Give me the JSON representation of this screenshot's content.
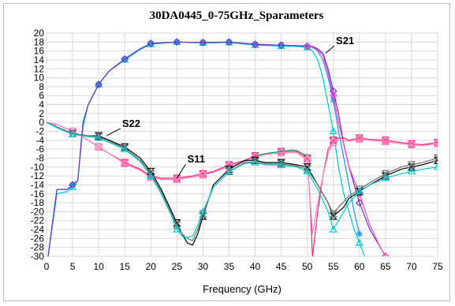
{
  "chart_data": {
    "type": "line",
    "title": "30DA0445_0-75GHz_Sparameters",
    "xlabel": "Frequency (GHz)",
    "ylabel": "",
    "xlim": [
      0,
      75
    ],
    "ylim": [
      -30,
      20
    ],
    "xticks": [
      0,
      5,
      10,
      15,
      20,
      25,
      30,
      35,
      40,
      45,
      50,
      55,
      60,
      65,
      70,
      75
    ],
    "yticks": [
      20,
      18,
      16,
      14,
      12,
      10,
      8,
      6,
      4,
      2,
      0,
      -2,
      -4,
      -6,
      -8,
      -10,
      -12,
      -14,
      -16,
      -18,
      -20,
      -22,
      -24,
      -26,
      -28,
      -30
    ],
    "grid": true,
    "legend": "none",
    "annotations": [
      {
        "text": "S21",
        "x": 55.5,
        "y": 17.5,
        "arrow_to": [
          53.5,
          15.5
        ]
      },
      {
        "text": "S22",
        "x": 14.5,
        "y": -1.0,
        "arrow_to": [
          11.5,
          -3.0
        ]
      },
      {
        "text": "S11",
        "x": 27.0,
        "y": -9.0,
        "arrow_to": [
          25.0,
          -12.5
        ]
      }
    ],
    "series": [
      {
        "key": "s21_a",
        "color": "#1f8fff",
        "marker": "star",
        "x": [
          0.3,
          2,
          4,
          5,
          6,
          7,
          8,
          10,
          12,
          15,
          18,
          20,
          25,
          30,
          35,
          40,
          45,
          48,
          50,
          51,
          52,
          53,
          54,
          55,
          56,
          57,
          58,
          59,
          60
        ],
        "y": [
          -30,
          -15,
          -15,
          -14,
          -13,
          0,
          4,
          8.5,
          11.5,
          14.2,
          16.5,
          17.7,
          18,
          17.9,
          18,
          17.5,
          17.3,
          17.2,
          17,
          16.8,
          16,
          14,
          10,
          5,
          -2,
          -8,
          -14,
          -20,
          -25
        ]
      },
      {
        "key": "s21_b",
        "color": "#00c8d0",
        "marker": "triangle",
        "x": [
          0.3,
          2,
          4,
          5,
          6,
          7,
          8,
          10,
          12,
          15,
          18,
          20,
          25,
          30,
          35,
          40,
          45,
          48,
          50,
          51,
          52,
          53,
          54,
          55,
          56,
          57,
          58,
          59,
          60,
          61
        ],
        "y": [
          -30,
          -16,
          -15.5,
          -14.5,
          -13,
          -1,
          4,
          8.5,
          11.5,
          14,
          16.3,
          17.5,
          18,
          17.8,
          17.9,
          17.3,
          17.1,
          17,
          16.8,
          16,
          14,
          10,
          4,
          -2,
          -10,
          -16,
          -20,
          -24,
          -27,
          -30
        ]
      },
      {
        "key": "s21_c",
        "color": "#7030c0",
        "marker": "diamond",
        "x": [
          0.3,
          2,
          4,
          5,
          6,
          7,
          8,
          10,
          12,
          15,
          18,
          20,
          25,
          30,
          35,
          40,
          45,
          48,
          50,
          51,
          52,
          53,
          54,
          55,
          56,
          57,
          58,
          60,
          62,
          64,
          65
        ],
        "y": [
          -30,
          -15,
          -15,
          -14,
          -13,
          0,
          4,
          8.5,
          11.5,
          14.2,
          16.5,
          17.7,
          18,
          17.9,
          18,
          17.5,
          17.3,
          17.2,
          17.1,
          17,
          16.5,
          15.5,
          12,
          7,
          2,
          -5,
          -10,
          -18,
          -24,
          -28,
          -30
        ]
      },
      {
        "key": "s21_d",
        "color": "#ff3fbf",
        "marker": "diamond",
        "x": [
          50,
          51,
          52,
          53,
          54,
          55,
          56,
          57,
          58,
          60,
          62,
          64,
          65
        ],
        "y": [
          17,
          16.8,
          16.2,
          15,
          11,
          6,
          0,
          -5,
          -10,
          -16,
          -23,
          -28,
          -30
        ]
      },
      {
        "key": "s11_a",
        "color": "#ff2070",
        "marker": "xbox",
        "x": [
          0,
          2,
          5,
          8,
          10,
          12,
          15,
          18,
          20,
          22,
          25,
          28,
          30,
          32,
          35,
          38,
          40,
          42,
          45,
          48,
          50,
          50.5,
          51,
          52,
          53,
          54,
          55,
          56,
          57,
          58,
          60,
          62,
          65,
          68,
          70,
          72,
          75
        ],
        "y": [
          0,
          -0.5,
          -2,
          -4,
          -5.5,
          -7,
          -9,
          -10.5,
          -12,
          -12.5,
          -12.5,
          -12,
          -11.5,
          -11,
          -9.5,
          -8.5,
          -7.5,
          -7,
          -6.5,
          -6.5,
          -8,
          -17,
          -30,
          -20,
          -12,
          -6,
          -4,
          -3.5,
          -3.5,
          -4,
          -3.5,
          -3.8,
          -4,
          -4.5,
          -4.8,
          -5,
          -4.5
        ]
      },
      {
        "key": "s11_b",
        "color": "#ff80c0",
        "marker": "xbox",
        "x": [
          0,
          2,
          5,
          8,
          10,
          12,
          15,
          18,
          20,
          22,
          25,
          28,
          30,
          32,
          35,
          38,
          40,
          42,
          45,
          48,
          50,
          51,
          52,
          53,
          54,
          55,
          56,
          58,
          60,
          62,
          65,
          68,
          70,
          72,
          75
        ],
        "y": [
          0,
          -0.5,
          -2,
          -4,
          -5.5,
          -7,
          -9.2,
          -10.8,
          -12.3,
          -12.8,
          -12.8,
          -12.3,
          -11.8,
          -11.2,
          -9.8,
          -8.8,
          -7.8,
          -7.2,
          -6.8,
          -6.8,
          -8.5,
          -25,
          -18,
          -12,
          -7,
          -4.5,
          -4,
          -4.2,
          -3.8,
          -4,
          -4.3,
          -4.8,
          -5,
          -5.2,
          -4.8
        ]
      },
      {
        "key": "s11_c",
        "color": "#00b060",
        "marker": "none",
        "x": [
          40,
          42,
          45,
          47,
          48,
          50
        ],
        "y": [
          -7.5,
          -7,
          -6.5,
          -6.2,
          -6.3,
          -7.5
        ]
      },
      {
        "key": "s22_a",
        "color": "#000000",
        "marker": "hourglass",
        "x": [
          0,
          2,
          5,
          8,
          10,
          12,
          15,
          18,
          20,
          22,
          24,
          25,
          26,
          27,
          28,
          29,
          30,
          32,
          35,
          38,
          40,
          42,
          45,
          48,
          50,
          51,
          52,
          53,
          54,
          55,
          56,
          57,
          58,
          60,
          62,
          65,
          68,
          70,
          72,
          75
        ],
        "y": [
          0,
          -1,
          -2.5,
          -3,
          -3,
          -4,
          -5.5,
          -8,
          -11,
          -15,
          -20,
          -22.5,
          -25,
          -27,
          -27.5,
          -25,
          -21,
          -14,
          -10.5,
          -8.5,
          -8.5,
          -9,
          -9,
          -9.5,
          -10,
          -12,
          -14,
          -16,
          -18,
          -21,
          -20,
          -19,
          -17,
          -15.5,
          -14,
          -12,
          -10.5,
          -10,
          -9.5,
          -8.5
        ]
      },
      {
        "key": "s22_b",
        "color": "#707070",
        "marker": "hourglass",
        "x": [
          0,
          2,
          5,
          8,
          10,
          12,
          15,
          18,
          20,
          22,
          24,
          25,
          26,
          27,
          28,
          29,
          30,
          32,
          35,
          38,
          40,
          42,
          45,
          48,
          50,
          52,
          54,
          55,
          56,
          58,
          60,
          62,
          65,
          68,
          70,
          72,
          75
        ],
        "y": [
          0,
          -1,
          -2.5,
          -3,
          -3.2,
          -4.2,
          -5.8,
          -8.5,
          -11.5,
          -15.5,
          -20.5,
          -23,
          -25,
          -26,
          -26.5,
          -24,
          -20.5,
          -14.5,
          -11,
          -9,
          -8.8,
          -9.3,
          -9.3,
          -9.8,
          -10.5,
          -14,
          -18,
          -20.5,
          -19,
          -16.5,
          -15,
          -13.5,
          -11.5,
          -10,
          -9.5,
          -9,
          -8
        ]
      },
      {
        "key": "s22_c",
        "color": "#00c8d0",
        "marker": "triangle",
        "x": [
          0,
          2,
          5,
          8,
          10,
          12,
          15,
          18,
          20,
          22,
          24,
          25,
          26,
          27,
          28,
          29,
          30,
          32,
          35,
          38,
          40,
          42,
          45,
          48,
          50,
          52,
          54,
          55,
          56,
          58,
          60,
          62,
          65,
          68,
          70,
          72,
          75
        ],
        "y": [
          0,
          -1.2,
          -2.7,
          -3.2,
          -3.5,
          -4.5,
          -6,
          -8.8,
          -12,
          -16,
          -21,
          -24,
          -25.5,
          -25.8,
          -25.5,
          -23,
          -20,
          -14.5,
          -11,
          -9.2,
          -9,
          -9.5,
          -9.6,
          -10,
          -11,
          -15,
          -20,
          -24,
          -22,
          -18,
          -15.5,
          -14,
          -12.5,
          -11.5,
          -11,
          -10.5,
          -10
        ]
      }
    ]
  }
}
